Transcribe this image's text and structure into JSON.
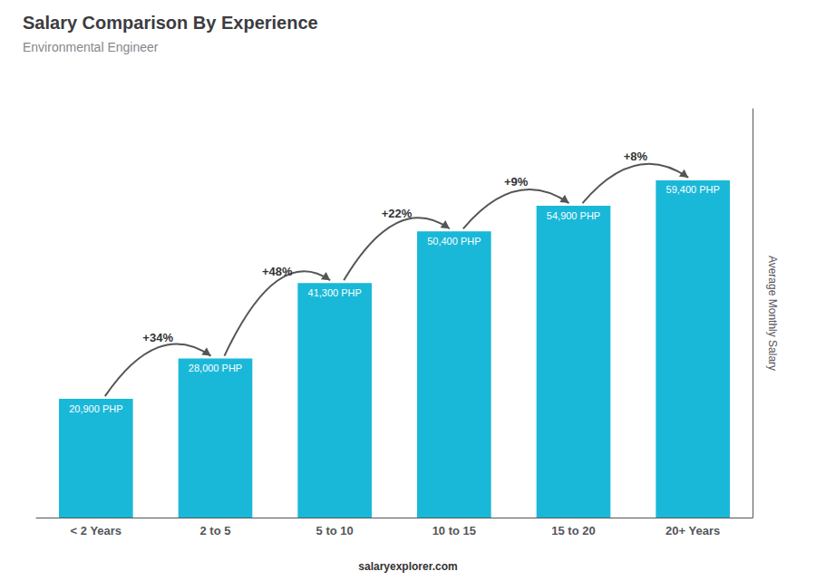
{
  "chart_data": {
    "type": "bar",
    "title": "Salary Comparison By Experience",
    "subtitle": "Environmental Engineer",
    "categories": [
      "< 2 Years",
      "2 to 5",
      "5 to 10",
      "10 to 15",
      "15 to 20",
      "20+ Years"
    ],
    "values": [
      20900,
      28000,
      41300,
      50400,
      54900,
      59400
    ],
    "value_labels": [
      "20,900 PHP",
      "28,000 PHP",
      "41,300 PHP",
      "50,400 PHP",
      "54,900 PHP",
      "59,400 PHP"
    ],
    "data_labels": true,
    "annotations": [
      "+34%",
      "+48%",
      "+22%",
      "+9%",
      "+8%"
    ],
    "ylabel": "Average Monthly Salary",
    "caption": "salaryexplorer.com",
    "color": "#1ab8d8",
    "ylim": [
      0,
      72000
    ],
    "grid": false,
    "tick_labels": "x"
  }
}
